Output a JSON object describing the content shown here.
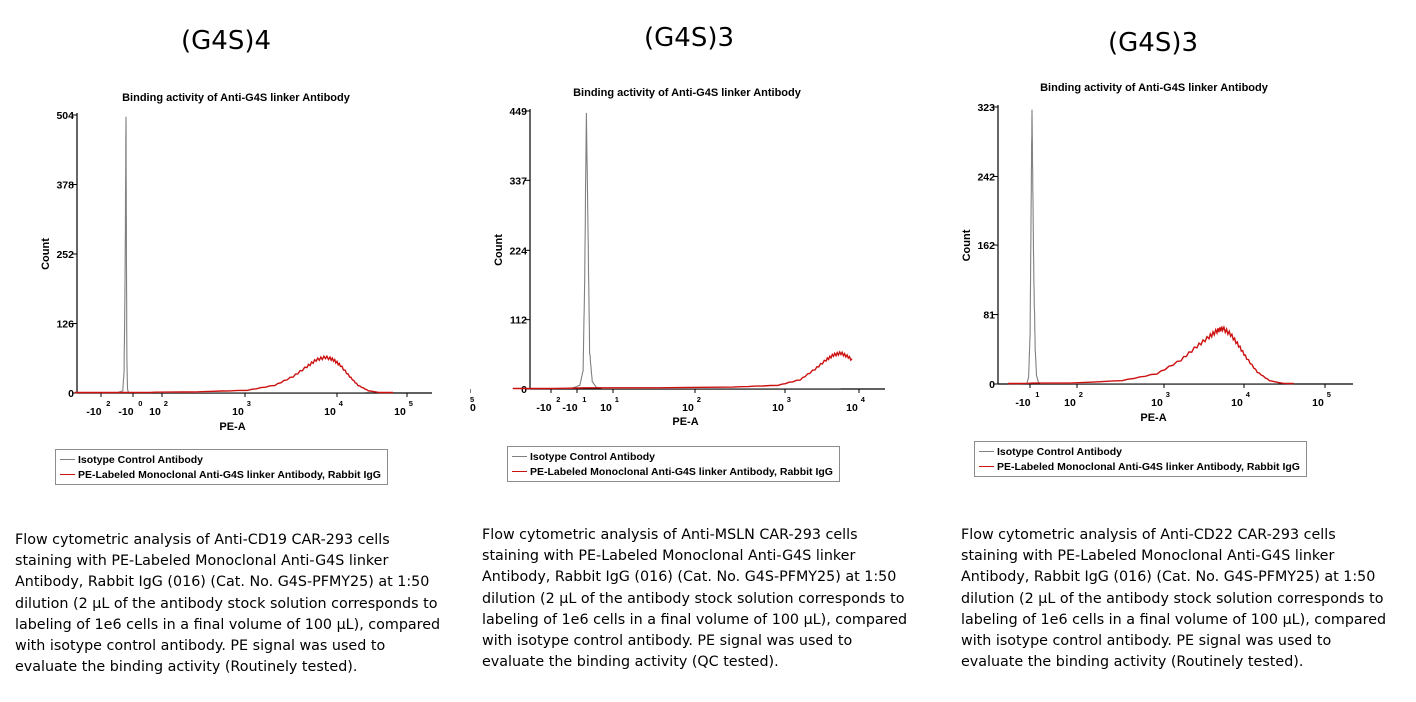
{
  "colors": {
    "isotype": "#808080",
    "antibody": "#cc1111",
    "axis": "#000000"
  },
  "panels": [
    {
      "heading": "(G4S)4",
      "legend": [
        "Isotype Control Antibody",
        "PE-Labeled Monoclonal Anti-G4S linker Antibody, Rabbit IgG"
      ],
      "caption": "Flow cytometric analysis of Anti-CD19 CAR-293 cells\nstaining with PE-Labeled Monoclonal Anti-G4S linker\nAntibody, Rabbit IgG (016) (Cat. No. G4S-PFMY25) at 1:50\ndilution (2 µL of the antibody stock solution corresponds to\nlabeling of 1e6 cells in a final volume of 100 µL), compared\nwith isotype control antibody. PE signal was used to\nevaluate the binding activity (Routinely tested)."
    },
    {
      "heading": "(G4S)3",
      "legend": [
        "Isotype Control Antibody",
        "PE-Labeled Monoclonal Anti-G4S linker Antibody, Rabbit IgG"
      ],
      "caption": "Flow cytometric analysis of Anti-MSLN CAR-293 cells\nstaining with PE-Labeled Monoclonal Anti-G4S linker\nAntibody, Rabbit IgG (016) (Cat. No. G4S-PFMY25) at 1:50\ndilution (2 µL of the antibody stock solution corresponds to\nlabeling of 1e6 cells in a final volume of 100 µL), compared\nwith isotype control antibody. PE signal was used to\nevaluate the binding activity (QC tested)."
    },
    {
      "heading": "(G4S)3",
      "legend": [
        "Isotype Control Antibody",
        "PE-Labeled Monoclonal Anti-G4S linker Antibody, Rabbit IgG"
      ],
      "caption": "Flow cytometric analysis of Anti-CD22 CAR-293 cells\nstaining with PE-Labeled Monoclonal Anti-G4S linker\nAntibody, Rabbit IgG (016) (Cat. No. G4S-PFMY25) at 1:50\ndilution (2 µL of the antibody stock solution corresponds to\nlabeling of 1e6 cells in a final volume of 100 µL), compared\nwith isotype control antibody. PE signal was used to\nevaluate the binding activity (Routinely tested)."
    }
  ],
  "chart_data": [
    {
      "type": "line",
      "title": "Binding activity of Anti-G4S linker Antibody",
      "xlabel": "PE-A",
      "ylabel": "Count",
      "xscale": "biexponential",
      "yticks": [
        "0",
        "126",
        "252",
        "378",
        "504"
      ],
      "ylim": [
        0,
        504
      ],
      "xticks": [
        {
          "base": "-10",
          "exp": "2"
        },
        {
          "base": "-10",
          "exp": "0"
        },
        {
          "base": "10",
          "exp": "2"
        },
        {
          "base": "10",
          "exp": "3"
        },
        {
          "base": "10",
          "exp": "4"
        },
        {
          "base": "10",
          "exp": "5"
        }
      ],
      "legend_position": "below",
      "series": [
        {
          "name": "Isotype Control Antibody",
          "color": "#808080",
          "points": [
            [
              -1.6,
              0
            ],
            [
              -0.3,
              0
            ],
            [
              -0.1,
              4
            ],
            [
              -0.06,
              40
            ],
            [
              -0.03,
              200
            ],
            [
              0,
              504
            ],
            [
              0.03,
              250
            ],
            [
              0.06,
              60
            ],
            [
              0.1,
              8
            ],
            [
              0.15,
              2
            ],
            [
              0.3,
              0
            ],
            [
              4.5,
              0
            ]
          ]
        },
        {
          "name": "PE-Labeled Monoclonal Anti-G4S linker Antibody, Rabbit IgG",
          "color": "#cc1111",
          "points": [
            [
              -1.6,
              0
            ],
            [
              0,
              1
            ],
            [
              1.5,
              1
            ],
            [
              2.5,
              2
            ],
            [
              3.1,
              5
            ],
            [
              3.4,
              14
            ],
            [
              3.6,
              30
            ],
            [
              3.75,
              48
            ],
            [
              3.85,
              60
            ],
            [
              3.95,
              65
            ],
            [
              4.05,
              60
            ],
            [
              4.15,
              50
            ],
            [
              4.28,
              30
            ],
            [
              4.4,
              14
            ],
            [
              4.55,
              4
            ],
            [
              4.7,
              1
            ],
            [
              4.9,
              0
            ]
          ]
        }
      ]
    },
    {
      "type": "line",
      "title": "Binding activity of Anti-G4S linker Antibody",
      "xlabel": "PE-A",
      "ylabel": "Count",
      "xscale": "biexponential",
      "yticks": [
        "0",
        "112",
        "224",
        "337",
        "449"
      ],
      "ylim": [
        0,
        449
      ],
      "xticks": [
        {
          "base": "-10",
          "exp": "2"
        },
        {
          "base": "-10",
          "exp": "1"
        },
        {
          "base": "10",
          "exp": "1"
        },
        {
          "base": "10",
          "exp": "2"
        },
        {
          "base": "10",
          "exp": "3"
        },
        {
          "base": "10",
          "exp": "4"
        },
        {
          "base": "10",
          "exp": "5"
        }
      ],
      "legend_position": "below",
      "series": [
        {
          "name": "Isotype Control Antibody",
          "color": "#808080",
          "points": [
            [
              -1.6,
              0
            ],
            [
              -0.5,
              0
            ],
            [
              -0.2,
              6
            ],
            [
              -0.1,
              30
            ],
            [
              -0.05,
              180
            ],
            [
              0,
              449
            ],
            [
              0.05,
              260
            ],
            [
              0.1,
              60
            ],
            [
              0.18,
              12
            ],
            [
              0.3,
              3
            ],
            [
              0.6,
              0
            ],
            [
              4.5,
              0
            ]
          ]
        },
        {
          "name": "PE-Labeled Monoclonal Anti-G4S linker Antibody, Rabbit IgG",
          "color": "#cc1111",
          "points": [
            [
              -1.6,
              0
            ],
            [
              0,
              2
            ],
            [
              1.5,
              2
            ],
            [
              2.5,
              3
            ],
            [
              3.0,
              6
            ],
            [
              3.3,
              15
            ],
            [
              3.5,
              32
            ],
            [
              3.65,
              47
            ],
            [
              3.75,
              55
            ],
            [
              3.85,
              58
            ],
            [
              3.95,
              52
            ],
            [
              4.05,
              42
            ],
            [
              4.15,
              26
            ],
            [
              4.3,
              10
            ],
            [
              4.45,
              3
            ],
            [
              4.6,
              1
            ],
            [
              4.8,
              0
            ]
          ]
        }
      ]
    },
    {
      "type": "line",
      "title": "Binding activity of Anti-G4S linker Antibody",
      "xlabel": "PE-A",
      "ylabel": "Count",
      "xscale": "biexponential",
      "yticks": [
        "0",
        "81",
        "162",
        "242",
        "323"
      ],
      "ylim": [
        0,
        323
      ],
      "xticks": [
        {
          "base": "-10",
          "exp": "1"
        },
        {
          "base": "10",
          "exp": "2"
        },
        {
          "base": "10",
          "exp": "3"
        },
        {
          "base": "10",
          "exp": "4"
        },
        {
          "base": "10",
          "exp": "5"
        }
      ],
      "legend_position": "below",
      "series": [
        {
          "name": "Isotype Control Antibody",
          "color": "#808080",
          "points": [
            [
              -1.3,
              0
            ],
            [
              -0.3,
              0
            ],
            [
              -0.2,
              8
            ],
            [
              -0.12,
              60
            ],
            [
              -0.06,
              230
            ],
            [
              -0.02,
              323
            ],
            [
              0.02,
              230
            ],
            [
              0.08,
              120
            ],
            [
              0.15,
              40
            ],
            [
              0.22,
              10
            ],
            [
              0.32,
              2
            ],
            [
              0.5,
              0
            ],
            [
              4.5,
              0
            ]
          ]
        },
        {
          "name": "PE-Labeled Monoclonal Anti-G4S linker Antibody, Rabbit IgG",
          "color": "#cc1111",
          "points": [
            [
              -1.3,
              0
            ],
            [
              0,
              1
            ],
            [
              2.0,
              1
            ],
            [
              2.6,
              4
            ],
            [
              3.0,
              12
            ],
            [
              3.3,
              28
            ],
            [
              3.5,
              44
            ],
            [
              3.65,
              55
            ],
            [
              3.75,
              62
            ],
            [
              3.82,
              65
            ],
            [
              3.92,
              58
            ],
            [
              4.02,
              45
            ],
            [
              4.12,
              30
            ],
            [
              4.25,
              14
            ],
            [
              4.4,
              4
            ],
            [
              4.55,
              1
            ],
            [
              4.7,
              0
            ]
          ]
        }
      ]
    }
  ]
}
